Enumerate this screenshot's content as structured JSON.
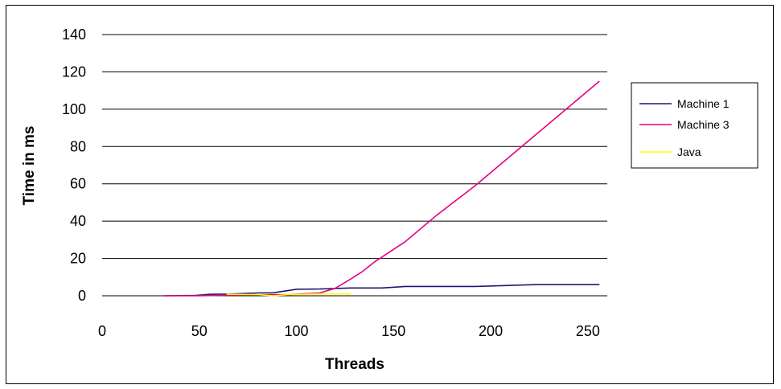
{
  "chart_data": {
    "type": "line",
    "title": "",
    "xlabel": "Threads",
    "ylabel": "Time in ms",
    "xlim": [
      0,
      260
    ],
    "ylim": [
      0,
      140
    ],
    "xticks": [
      0,
      50,
      100,
      150,
      200,
      250
    ],
    "yticks": [
      0,
      20,
      40,
      60,
      80,
      100,
      120,
      140
    ],
    "grid": "horizontal",
    "legend_position": "right",
    "series": [
      {
        "name": "Machine 1",
        "color": "#1a1a6e",
        "x": [
          32,
          48,
          56,
          64,
          80,
          88,
          100,
          112,
          128,
          144,
          156,
          192,
          224,
          256
        ],
        "y": [
          0,
          0.2,
          0.8,
          0.9,
          1.5,
          1.6,
          3.5,
          3.6,
          4.2,
          4.2,
          5,
          5,
          6,
          6
        ]
      },
      {
        "name": "Machine 3",
        "color": "#e6007e",
        "x": [
          32,
          48,
          64,
          80,
          96,
          112,
          120,
          128,
          134,
          140,
          156,
          172,
          192,
          224,
          256
        ],
        "y": [
          0,
          0,
          0.3,
          0.5,
          0.6,
          1.5,
          4,
          9,
          13,
          18,
          29,
          43,
          59,
          87,
          115
        ]
      },
      {
        "name": "Java",
        "color": "#ffff00",
        "x": [
          64,
          80,
          88,
          96,
          112,
          128
        ],
        "y": [
          0.8,
          0.6,
          0,
          0.6,
          1,
          1
        ]
      }
    ]
  }
}
